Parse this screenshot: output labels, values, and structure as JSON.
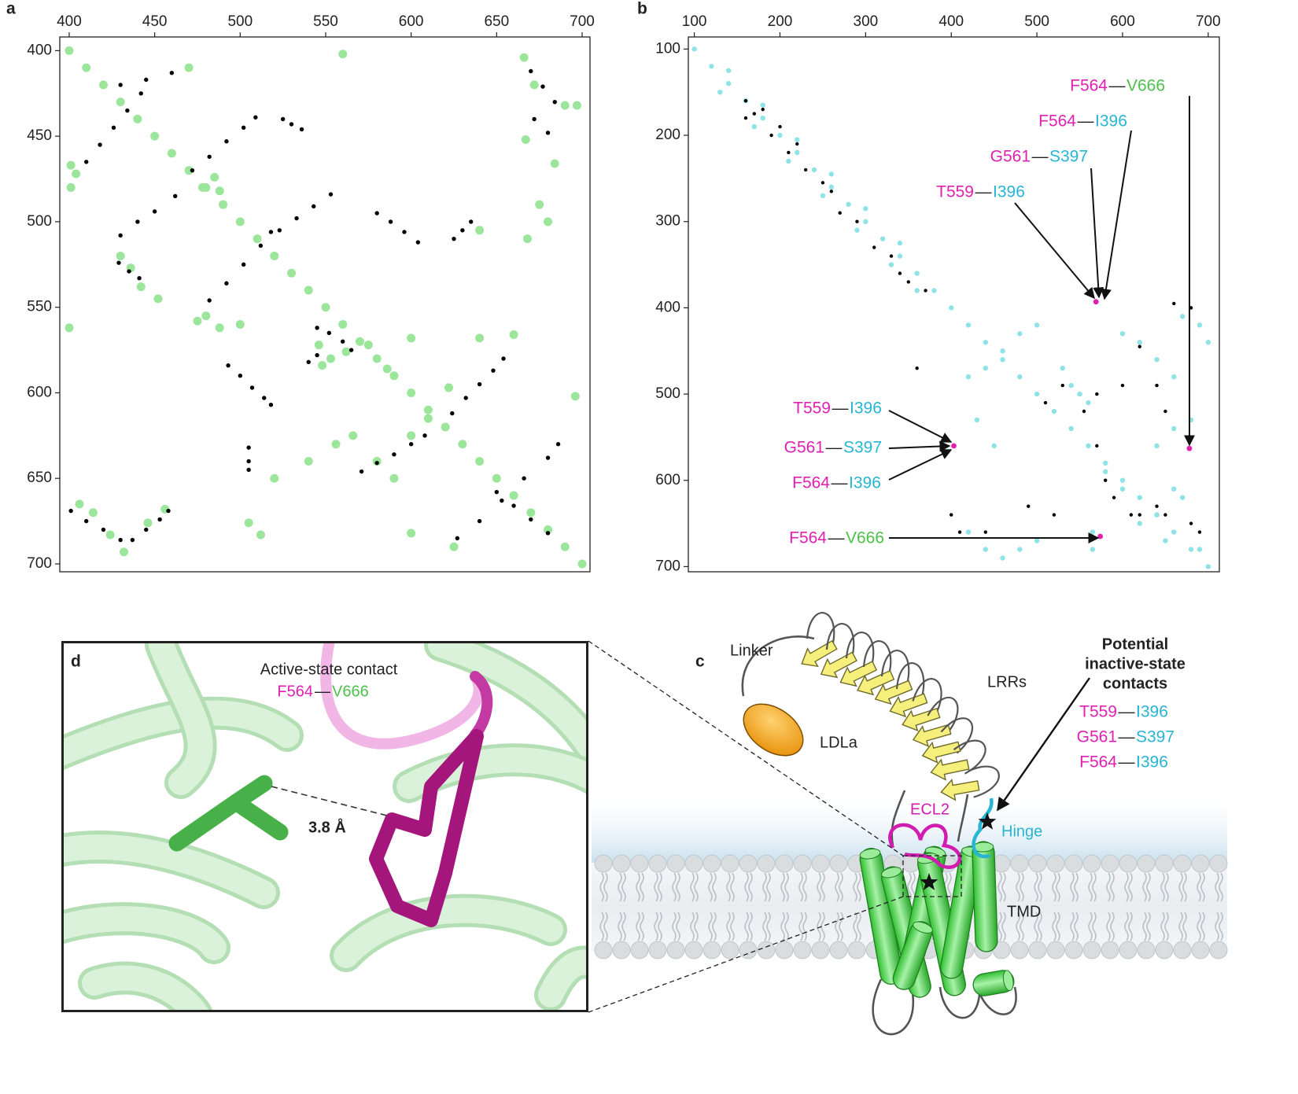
{
  "chart_data": [
    {
      "type": "scatter",
      "label": "a",
      "x_axis": "top",
      "y_reversed": true,
      "xlim": [
        394.5,
        704.6
      ],
      "ylim": [
        392,
        704.6
      ],
      "xticks": [
        400,
        450,
        500,
        550,
        600,
        650,
        700
      ],
      "yticks": [
        400,
        450,
        500,
        550,
        600,
        650,
        700
      ],
      "series": [
        {
          "color": "#9be69b",
          "x": [
            400,
            410,
            420,
            430,
            440,
            450,
            460,
            470,
            480,
            490,
            500,
            510,
            520,
            530,
            540,
            550,
            560,
            570,
            580,
            590,
            600,
            610,
            620,
            630,
            640,
            650,
            660,
            670,
            680,
            690,
            700,
            401,
            401,
            404,
            470,
            485,
            478,
            488,
            430,
            436,
            442,
            452,
            400,
            475,
            480,
            488,
            500,
            560,
            546,
            553,
            562,
            575,
            586,
            600,
            622,
            640,
            660,
            640,
            668,
            680,
            675,
            666,
            672,
            690,
            697,
            684,
            667,
            406,
            414,
            424,
            432,
            446,
            456,
            505,
            512,
            520,
            540,
            556,
            566,
            600,
            625,
            696,
            580,
            590,
            548,
            600,
            610
          ],
          "values": [
            400,
            410,
            420,
            430,
            440,
            450,
            460,
            470,
            480,
            490,
            500,
            510,
            520,
            530,
            540,
            550,
            560,
            570,
            580,
            590,
            600,
            610,
            620,
            630,
            640,
            650,
            660,
            670,
            680,
            690,
            700,
            467,
            480,
            472,
            410,
            474,
            480,
            482,
            520,
            527,
            538,
            545,
            562,
            558,
            555,
            562,
            560,
            402,
            572,
            580,
            576,
            572,
            586,
            568,
            597,
            568,
            566,
            505,
            510,
            500,
            490,
            404,
            420,
            432,
            432,
            466,
            452,
            665,
            670,
            683,
            693,
            676,
            668,
            676,
            683,
            650,
            640,
            630,
            625,
            682,
            690,
            602,
            640,
            650,
            584,
            625,
            615
          ]
        },
        {
          "color": "#000000",
          "x": [
            410,
            418,
            426,
            434,
            442,
            430,
            445,
            460,
            430,
            440,
            450,
            462,
            472,
            482,
            492,
            502,
            509,
            482,
            492,
            502,
            512,
            518,
            523,
            533,
            543,
            553,
            493,
            500,
            507,
            514,
            518,
            580,
            588,
            596,
            604,
            571,
            580,
            590,
            600,
            608,
            624,
            632,
            640,
            648,
            654,
            627,
            640,
            653,
            666,
            680,
            686,
            650,
            660,
            670,
            680,
            401,
            410,
            420,
            430,
            437,
            445,
            453,
            458,
            429,
            435,
            441,
            525,
            530,
            536,
            545,
            552,
            560,
            565,
            625,
            630,
            635,
            670,
            677,
            684,
            505,
            505,
            505,
            540,
            545,
            672,
            680
          ],
          "values": [
            465,
            455,
            445,
            435,
            425,
            420,
            417,
            413,
            508,
            500,
            494,
            485,
            470,
            462,
            453,
            445,
            439,
            546,
            536,
            525,
            514,
            506,
            505,
            498,
            491,
            484,
            584,
            590,
            597,
            603,
            607,
            495,
            500,
            506,
            512,
            646,
            641,
            636,
            630,
            625,
            612,
            603,
            595,
            587,
            580,
            685,
            675,
            663,
            650,
            638,
            630,
            658,
            666,
            674,
            682,
            669,
            675,
            680,
            686,
            686,
            680,
            674,
            669,
            524,
            529,
            533,
            440,
            443,
            446,
            562,
            565,
            570,
            575,
            510,
            505,
            500,
            412,
            421,
            430,
            632,
            640,
            645,
            582,
            578,
            440,
            448
          ]
        }
      ]
    },
    {
      "type": "scatter",
      "label": "b",
      "x_axis": "top",
      "y_reversed": true,
      "xlim": [
        93,
        713
      ],
      "ylim": [
        86,
        706
      ],
      "xticks": [
        100,
        200,
        300,
        400,
        500,
        600,
        700
      ],
      "yticks": [
        100,
        200,
        300,
        400,
        500,
        600,
        700
      ],
      "series": [
        {
          "color": "#8ee3e6",
          "x": [
            100,
            120,
            140,
            160,
            180,
            200,
            220,
            240,
            260,
            280,
            300,
            320,
            340,
            360,
            380,
            400,
            420,
            440,
            460,
            480,
            500,
            520,
            540,
            560,
            580,
            600,
            620,
            640,
            660,
            680,
            700,
            130,
            170,
            210,
            250,
            290,
            330,
            360,
            140,
            180,
            220,
            260,
            300,
            340,
            420,
            440,
            460,
            480,
            500,
            530,
            540,
            550,
            560,
            600,
            620,
            640,
            660,
            670,
            690,
            700,
            640,
            660,
            680,
            580,
            600,
            420,
            440,
            460,
            480,
            500,
            565,
            565,
            620,
            640,
            660,
            670,
            650,
            690,
            430,
            450
          ],
          "values": [
            100,
            120,
            140,
            160,
            180,
            200,
            220,
            240,
            260,
            280,
            300,
            320,
            340,
            360,
            380,
            400,
            420,
            440,
            460,
            480,
            500,
            520,
            540,
            560,
            580,
            600,
            620,
            640,
            660,
            680,
            700,
            150,
            190,
            230,
            270,
            310,
            350,
            380,
            125,
            165,
            205,
            245,
            285,
            325,
            480,
            470,
            450,
            430,
            420,
            470,
            490,
            500,
            510,
            430,
            440,
            460,
            480,
            410,
            420,
            440,
            560,
            540,
            530,
            590,
            610,
            660,
            680,
            690,
            680,
            670,
            660,
            680,
            650,
            640,
            610,
            620,
            670,
            680,
            530,
            560
          ]
        },
        {
          "color": "#000000",
          "x": [
            160,
            170,
            180,
            190,
            200,
            210,
            230,
            250,
            270,
            290,
            310,
            330,
            350,
            370,
            160,
            220,
            260,
            340,
            660,
            680,
            620,
            640,
            600,
            530,
            555,
            570,
            580,
            610,
            620,
            640,
            650,
            680,
            690,
            440,
            400,
            410,
            590,
            490,
            520,
            360,
            570,
            510,
            650
          ],
          "values": [
            160,
            175,
            170,
            200,
            190,
            220,
            240,
            255,
            290,
            300,
            330,
            340,
            370,
            380,
            180,
            210,
            265,
            360,
            395,
            400,
            445,
            490,
            490,
            490,
            520,
            560,
            600,
            640,
            640,
            630,
            640,
            650,
            660,
            660,
            640,
            660,
            620,
            630,
            640,
            470,
            500,
            510,
            520
          ]
        },
        {
          "color": "#e020b0",
          "x": [
            569,
            403,
            678,
            574
          ],
          "values": [
            393,
            560,
            563,
            665
          ]
        }
      ],
      "annotations": [
        {
          "res1": "F564",
          "dash": "—",
          "res2": "V666",
          "color1": "#e020b0",
          "color2": "#4cc24c"
        },
        {
          "res1": "F564",
          "dash": "—",
          "res2": "I396",
          "color1": "#e020b0",
          "color2": "#26b5d4"
        },
        {
          "res1": "G561",
          "dash": "—",
          "res2": "S397",
          "color1": "#e020b0",
          "color2": "#26b5d4"
        },
        {
          "res1": "T559",
          "dash": "—",
          "res2": "I396",
          "color1": "#e020b0",
          "color2": "#26b5d4"
        },
        {
          "res1": "T559",
          "dash": "—",
          "res2": "I396",
          "color1": "#e020b0",
          "color2": "#26b5d4"
        },
        {
          "res1": "G561",
          "dash": "—",
          "res2": "S397",
          "color1": "#e020b0",
          "color2": "#26b5d4"
        },
        {
          "res1": "F564",
          "dash": "—",
          "res2": "I396",
          "color1": "#e020b0",
          "color2": "#26b5d4"
        },
        {
          "res1": "F564",
          "dash": "—",
          "res2": "V666",
          "color1": "#e020b0",
          "color2": "#4cc24c"
        }
      ]
    }
  ],
  "panel_c": {
    "label": "c",
    "linker": "Linker",
    "lrrs": "LRRs",
    "ldla": "LDLa",
    "ecl2": "ECL2",
    "hinge": "Hinge",
    "tmd": "TMD",
    "contacts_title": [
      "Potential",
      "inactive-state",
      "contacts"
    ],
    "contacts": [
      {
        "res1": "T559",
        "dash": "—",
        "res2": "I396",
        "color1": "#e020b0",
        "color2": "#26b5d4"
      },
      {
        "res1": "G561",
        "dash": "—",
        "res2": "S397",
        "color1": "#e020b0",
        "color2": "#26b5d4"
      },
      {
        "res1": "F564",
        "dash": "—",
        "res2": "I396",
        "color1": "#e020b0",
        "color2": "#26b5d4"
      }
    ]
  },
  "panel_d": {
    "label": "d",
    "title": "Active-state contact",
    "contact": {
      "res1": "F564",
      "dash": "—",
      "res2": "V666",
      "color1": "#e020b0",
      "color2": "#4cc24c"
    },
    "distance": "3.8 Å"
  }
}
